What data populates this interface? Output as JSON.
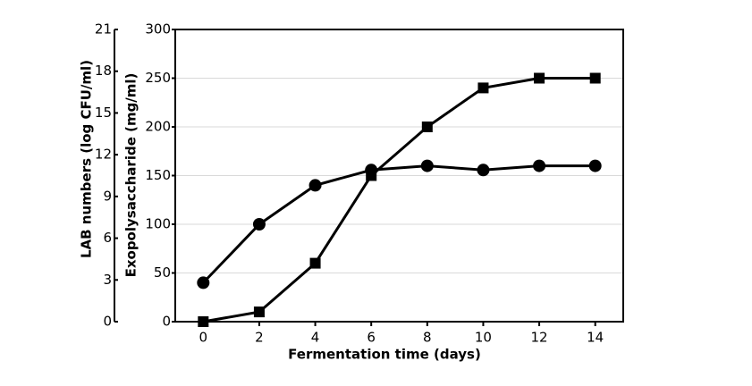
{
  "chart_data": {
    "type": "line",
    "xlabel": "Fermentation time (days)",
    "ylabel": "Exopolysaccharide (mg/ml)",
    "y2label": "LAB numbers (log CFU/ml)",
    "x": [
      0,
      2,
      4,
      6,
      8,
      10,
      12,
      14
    ],
    "xlim": [
      -1,
      15
    ],
    "xticks": [
      0,
      2,
      4,
      6,
      8,
      10,
      12,
      14
    ],
    "ylim": [
      0,
      300
    ],
    "yticks": [
      0,
      50,
      100,
      150,
      200,
      250,
      300
    ],
    "y2lim": [
      0,
      21
    ],
    "y2ticks": [
      0,
      3,
      6,
      9,
      12,
      15,
      18,
      21
    ],
    "grid": true,
    "series": [
      {
        "color": "#000000",
        "marker": "circle",
        "axis": "y2",
        "values": [
          2.8,
          7,
          9.8,
          10.9,
          11.2,
          10.9,
          11.2,
          11.2
        ]
      },
      {
        "color": "#000000",
        "marker": "square",
        "values": [
          0,
          10,
          60,
          150,
          200,
          240,
          250,
          250
        ]
      }
    ]
  }
}
